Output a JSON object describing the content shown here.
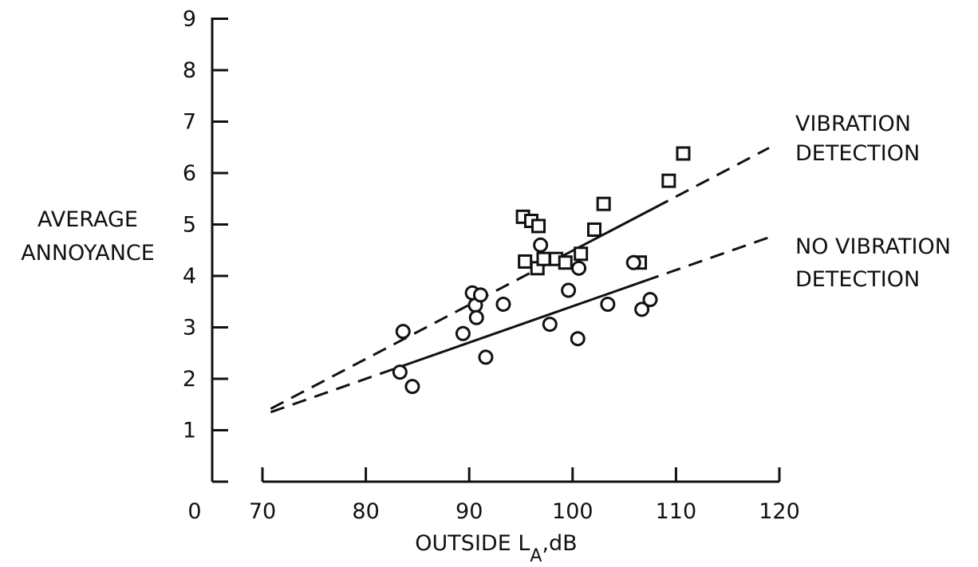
{
  "chart_data": {
    "type": "scatter",
    "title": "",
    "xlabel": "OUTSIDE L",
    "xlabel_sub": "A",
    "xlabel_unit": ",dB",
    "ylabel": [
      "AVERAGE",
      "ANNOYANCE"
    ],
    "x_axis": {
      "ticks": [
        "70",
        "80",
        "90",
        "100",
        "110",
        "120"
      ],
      "range": [
        70,
        120
      ]
    },
    "y_axis": {
      "ticks": [
        "1",
        "2",
        "3",
        "4",
        "5",
        "6",
        "7",
        "8",
        "9"
      ],
      "range": [
        0,
        9
      ]
    },
    "origin_label": "0",
    "grid": false,
    "series": [
      {
        "name": "VIBRATION DETECTION",
        "legend": [
          "VIBRATION",
          "DETECTION"
        ],
        "marker": "square",
        "points": [
          [
            95.2,
            5.15
          ],
          [
            96.0,
            5.07
          ],
          [
            96.7,
            4.97
          ],
          [
            103.0,
            5.4
          ],
          [
            102.1,
            4.9
          ],
          [
            109.3,
            5.85
          ],
          [
            110.7,
            6.38
          ],
          [
            95.4,
            4.28
          ],
          [
            96.6,
            4.15
          ],
          [
            97.2,
            4.33
          ],
          [
            98.4,
            4.33
          ],
          [
            99.3,
            4.26
          ],
          [
            100.8,
            4.43
          ],
          [
            106.5,
            4.26
          ]
        ],
        "fit": {
          "solid": [
            97.5,
            108.0
          ],
          "dashed": [
            70.8,
            119.0
          ],
          "intercept": -6.03,
          "slope": 0.1052
        }
      },
      {
        "name": "NO VIBRATION DETECTION",
        "legend": [
          "NO VIBRATION",
          "DETECTION"
        ],
        "marker": "circle",
        "points": [
          [
            83.6,
            2.92
          ],
          [
            83.3,
            2.13
          ],
          [
            84.5,
            1.85
          ],
          [
            89.4,
            2.88
          ],
          [
            90.3,
            3.67
          ],
          [
            90.6,
            3.43
          ],
          [
            90.7,
            3.19
          ],
          [
            91.1,
            3.63
          ],
          [
            91.6,
            2.42
          ],
          [
            93.3,
            3.45
          ],
          [
            96.9,
            4.6
          ],
          [
            97.8,
            3.06
          ],
          [
            99.6,
            3.72
          ],
          [
            100.6,
            4.15
          ],
          [
            100.5,
            2.78
          ],
          [
            103.4,
            3.45
          ],
          [
            105.9,
            4.26
          ],
          [
            106.7,
            3.35
          ],
          [
            107.5,
            3.54
          ]
        ],
        "fit": {
          "solid": [
            83.5,
            107.0
          ],
          "dashed": [
            70.8,
            119.0
          ],
          "intercept": -3.64,
          "slope": 0.0705
        }
      }
    ]
  }
}
